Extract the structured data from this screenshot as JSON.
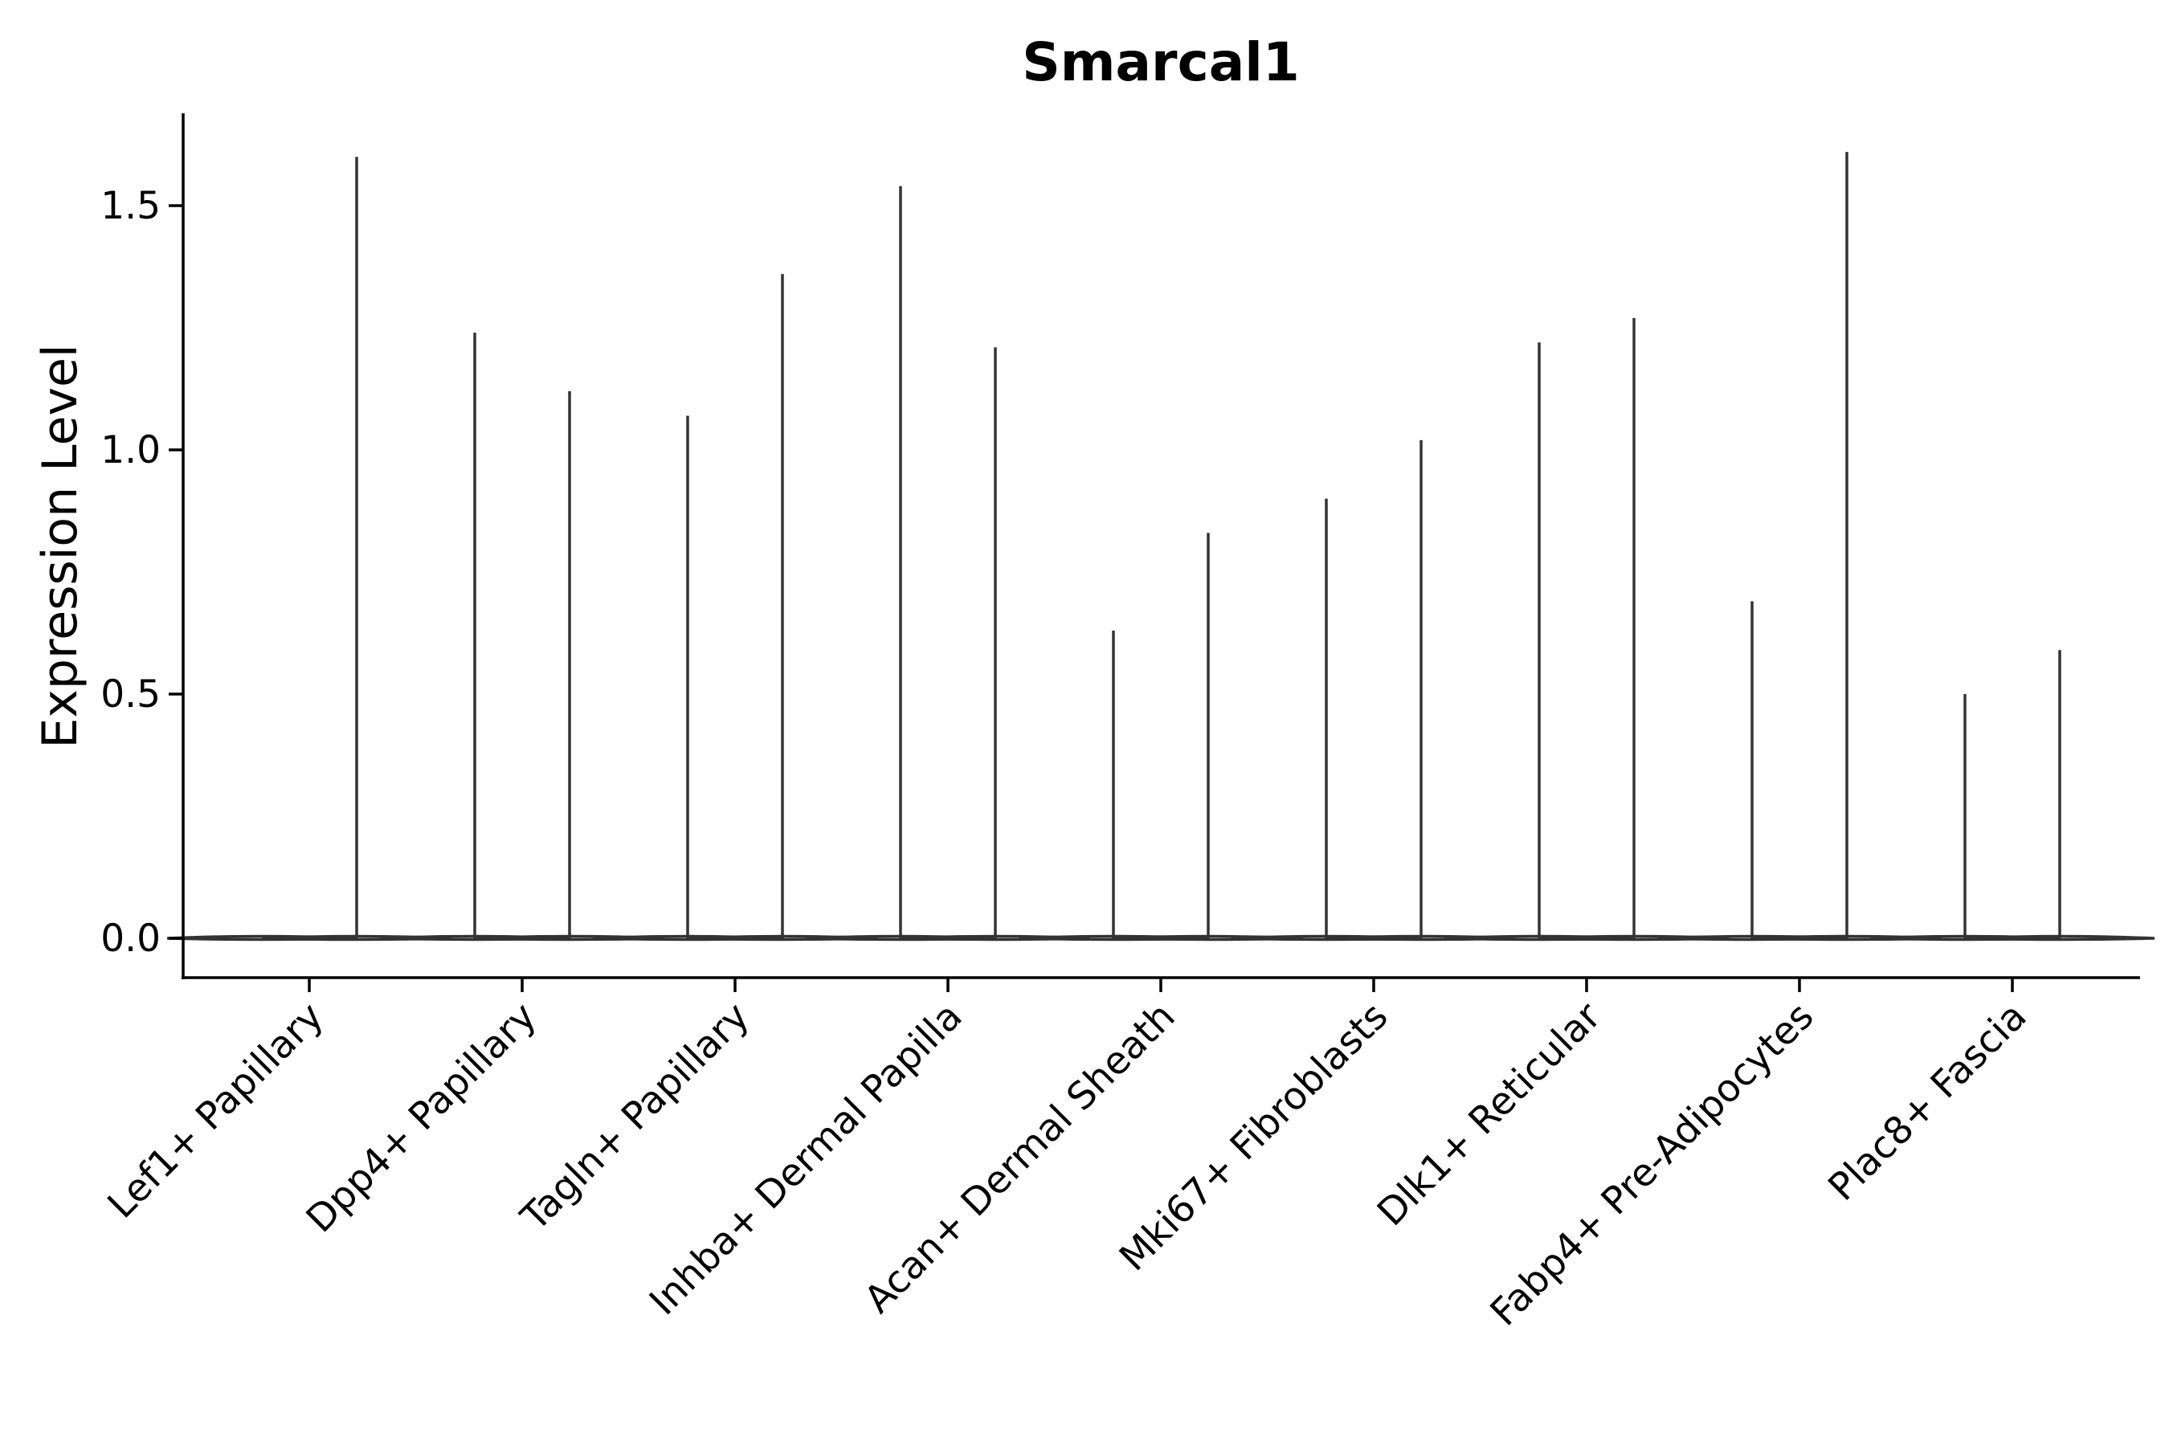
{
  "chart_data": {
    "type": "violin",
    "title": "Smarcal1",
    "xlabel": "",
    "ylabel": "Expression Level",
    "ylim": [
      -0.08,
      1.69
    ],
    "yticks": [
      0.0,
      0.5,
      1.0,
      1.5
    ],
    "ytick_labels": [
      "0.0",
      "0.5",
      "1.0",
      "1.5"
    ],
    "grid": false,
    "legend": "none",
    "categories": [
      "Lef1+ Papillary",
      "Dpp4+ Papillary",
      "Tagln+ Papillary",
      "Inhba+ Dermal Papilla",
      "Acan+ Dermal Sheath",
      "Mki67+ Fibroblasts",
      "Dlk1+ Reticular",
      "Fabp4+ Pre-Adipocytes",
      "Plac8+ Fascia"
    ],
    "violins": [
      {
        "category": "Lef1+ Papillary",
        "min": 0.0,
        "max": 0.0
      },
      {
        "category": "Lef1+ Papillary",
        "min": 0.0,
        "max": 1.6
      },
      {
        "category": "Dpp4+ Papillary",
        "min": 0.0,
        "max": 1.24
      },
      {
        "category": "Dpp4+ Papillary",
        "min": 0.0,
        "max": 1.12
      },
      {
        "category": "Tagln+ Papillary",
        "min": 0.0,
        "max": 1.07
      },
      {
        "category": "Tagln+ Papillary",
        "min": 0.0,
        "max": 1.36
      },
      {
        "category": "Inhba+ Dermal Papilla",
        "min": 0.0,
        "max": 1.54
      },
      {
        "category": "Inhba+ Dermal Papilla",
        "min": 0.0,
        "max": 1.21
      },
      {
        "category": "Acan+ Dermal Sheath",
        "min": 0.0,
        "max": 0.63
      },
      {
        "category": "Acan+ Dermal Sheath",
        "min": 0.0,
        "max": 0.83
      },
      {
        "category": "Mki67+ Fibroblasts",
        "min": 0.0,
        "max": 0.9
      },
      {
        "category": "Mki67+ Fibroblasts",
        "min": 0.0,
        "max": 1.02
      },
      {
        "category": "Dlk1+ Reticular",
        "min": 0.0,
        "max": 1.22
      },
      {
        "category": "Dlk1+ Reticular",
        "min": 0.0,
        "max": 1.27
      },
      {
        "category": "Fabp4+ Pre-Adipocytes",
        "min": 0.0,
        "max": 0.69
      },
      {
        "category": "Fabp4+ Pre-Adipocytes",
        "min": 0.0,
        "max": 1.61
      },
      {
        "category": "Plac8+ Fascia",
        "min": 0.0,
        "max": 0.5
      },
      {
        "category": "Plac8+ Fascia",
        "min": 0.0,
        "max": 0.59
      }
    ]
  }
}
